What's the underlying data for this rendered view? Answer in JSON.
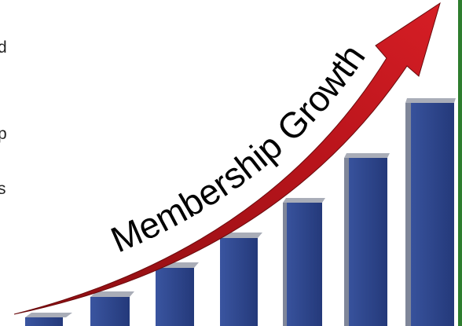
{
  "left_text": [
    "d",
    "p",
    "s"
  ],
  "illustration": {
    "title": "Membership Growth"
  }
}
